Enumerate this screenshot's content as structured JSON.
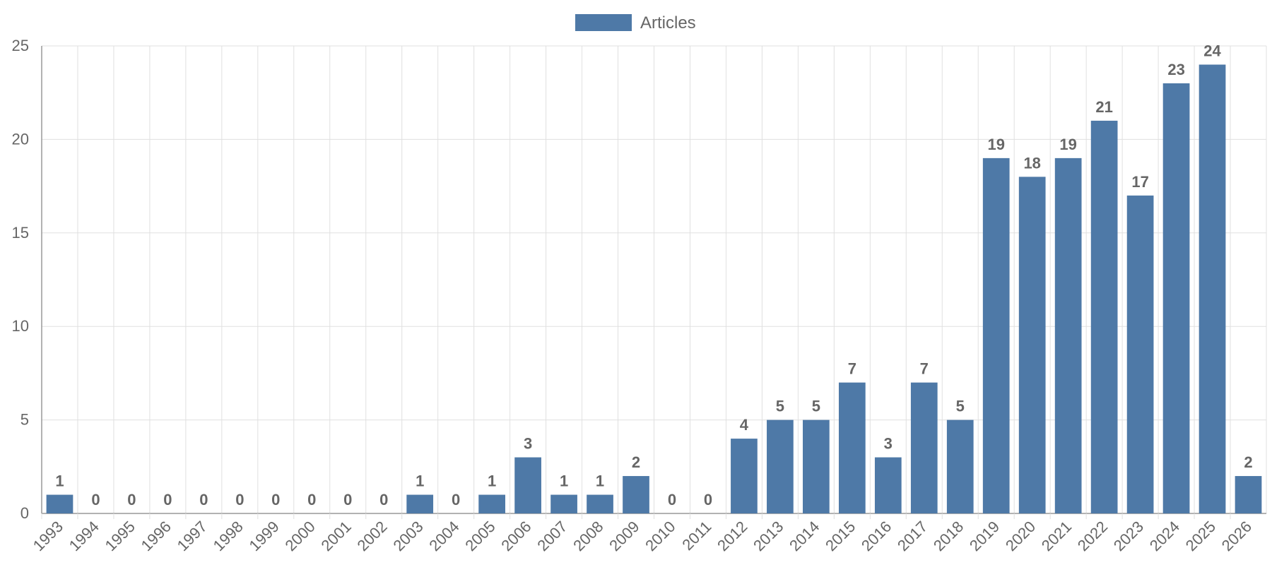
{
  "chart_data": {
    "type": "bar",
    "categories": [
      "1993",
      "1994",
      "1995",
      "1996",
      "1997",
      "1998",
      "1999",
      "2000",
      "2001",
      "2002",
      "2003",
      "2004",
      "2005",
      "2006",
      "2007",
      "2008",
      "2009",
      "2010",
      "2011",
      "2012",
      "2013",
      "2014",
      "2015",
      "2016",
      "2017",
      "2018",
      "2019",
      "2020",
      "2021",
      "2022",
      "2023",
      "2024",
      "2025",
      "2026"
    ],
    "series": [
      {
        "name": "Articles",
        "color": "#4e79a7",
        "values": [
          1,
          0,
          0,
          0,
          0,
          0,
          0,
          0,
          0,
          0,
          1,
          0,
          1,
          3,
          1,
          1,
          2,
          0,
          0,
          4,
          5,
          5,
          7,
          3,
          7,
          5,
          19,
          18,
          19,
          21,
          17,
          23,
          24,
          2
        ]
      }
    ],
    "ylim": [
      0,
      25
    ],
    "yticks": [
      0,
      5,
      10,
      15,
      20,
      25
    ],
    "grid": true,
    "legend_position": "top-center",
    "data_labels": true,
    "x_tick_rotation": "rotated",
    "colors": {
      "bar": "#4e79a7",
      "grid": "#e0e0e0",
      "axis": "#999999",
      "text": "#666666"
    }
  }
}
